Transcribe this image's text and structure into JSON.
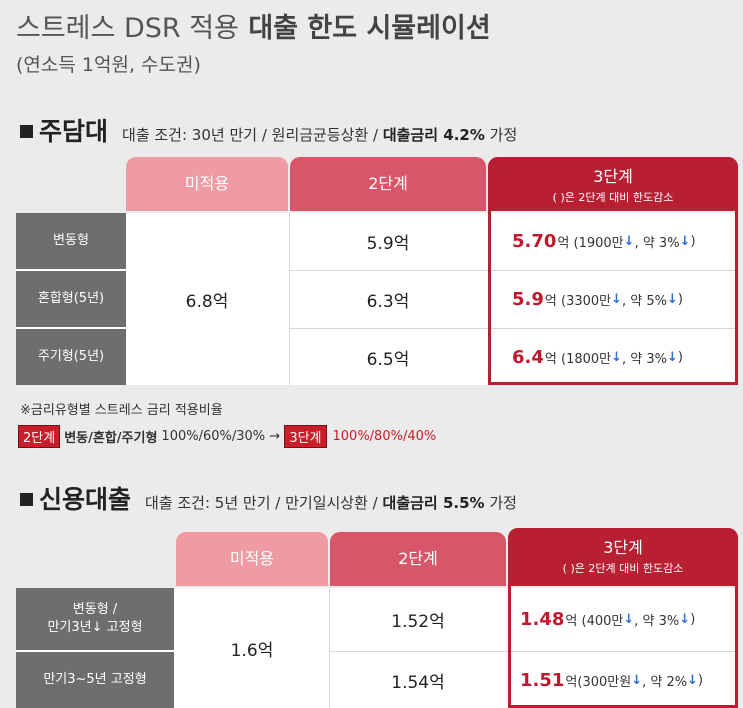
{
  "header": {
    "title_light": "스트레스 DSR 적용",
    "title_bold": "대출 한도 시뮬레이션",
    "subtitle": "(연소득 1억원, 수도권)"
  },
  "mortgage": {
    "section_title": "주담대",
    "condition_prefix": "대출 조건: 30년 만기 / 원리금균등상환 /",
    "condition_bold": "대출금리 4.2%",
    "condition_suffix": "가정",
    "columns": {
      "c1": "미적용",
      "c2": "2단계",
      "c3": "3단계",
      "c3_sub": "( )은 2단계 대비 한도감소"
    },
    "merged_value": "6.8억",
    "rows": [
      {
        "label": "변동형",
        "stage2": "5.9억",
        "stage3_big": "5.70",
        "stage3_unit": "억",
        "decrease": "(1900만",
        "pct": ", 약 3%",
        "close": ")"
      },
      {
        "label": "혼합형(5년)",
        "stage2": "6.3억",
        "stage3_big": "5.9",
        "stage3_unit": "억",
        "decrease": "(3300만",
        "pct": ", 약 5%",
        "close": ")"
      },
      {
        "label": "주기형(5년)",
        "stage2": "6.5억",
        "stage3_big": "6.4",
        "stage3_unit": "억",
        "decrease": "(1800만",
        "pct": ", 약 3%",
        "close": ")"
      }
    ]
  },
  "notes": {
    "note1": "※금리유형별 스트레스 금리 적용비율",
    "tag2": "2단계",
    "types": "변동/혼합/주기형",
    "ratio2": "100%/60%/30% →",
    "tag3": "3단계",
    "ratio3": "100%/80%/40%"
  },
  "credit": {
    "section_title": "신용대출",
    "condition_prefix": "대출 조건: 5년 만기 / 만기일시상환 /",
    "condition_bold": "대출금리 5.5%",
    "condition_suffix": "가정",
    "columns": {
      "c1": "미적용",
      "c2": "2단계",
      "c3": "3단계",
      "c3_sub": "( )은 2단계 대비 한도감소"
    },
    "merged_value": "1.6억",
    "rows": [
      {
        "label_line1": "변동형 /",
        "label_line2": "만기3년↓ 고정형",
        "stage2": "1.52억",
        "stage3_big": "1.48",
        "stage3_unit": "억",
        "decrease": "(400만",
        "pct": ", 약 3%",
        "close": ")"
      },
      {
        "label_line1": "만기3~5년 고정형",
        "label_line2": "",
        "stage2": "1.54억",
        "stage3_big": "1.51",
        "stage3_unit": "억",
        "decrease": "(300만원",
        "pct": ", 약 2%",
        "close": ")"
      }
    ]
  },
  "colors": {
    "header_light": "#ef9ba3",
    "header_mid": "#d9566a",
    "header_dark": "#b81f33",
    "row_label_bg": "#6e6e6e",
    "stage3_value": "#c0192f",
    "arrow_blue": "#2f6fd0"
  },
  "icons": [
    "square-bullet-icon",
    "down-arrow-icon"
  ]
}
